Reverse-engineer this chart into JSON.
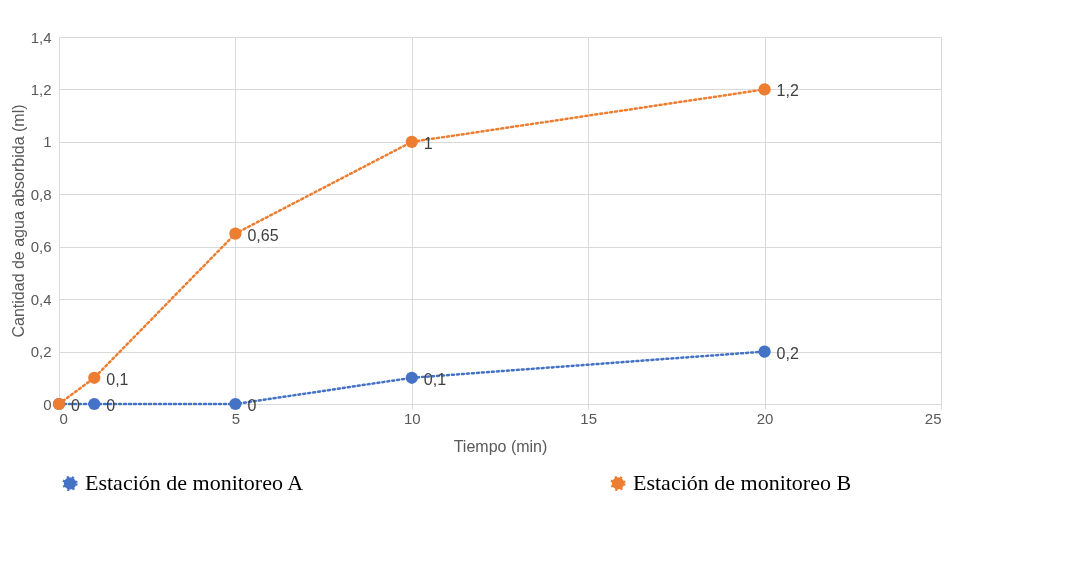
{
  "chart_data": {
    "type": "line",
    "xlabel": "Tiempo (min)",
    "ylabel": "Cantidad de agua absorbida (ml)",
    "x": [
      0,
      1,
      5,
      10,
      20
    ],
    "series": [
      {
        "name": "Estación de monitoreo A",
        "color": "#4472c4",
        "values": [
          0,
          0,
          0,
          0.1,
          0.2
        ],
        "value_labels": [
          "0",
          "0",
          "0",
          "0,1",
          "0,2"
        ]
      },
      {
        "name": "Estación de monitoreo B",
        "color": "#ed7d31",
        "values": [
          0,
          0.1,
          0.65,
          1,
          1.2
        ],
        "value_labels": [
          null,
          "0,1",
          "0,65",
          "1",
          "1,2"
        ]
      }
    ],
    "xlim": [
      0,
      25
    ],
    "xticks": [
      0,
      5,
      10,
      15,
      20,
      25
    ],
    "ylim": [
      0,
      1.4
    ],
    "yticks": [
      0,
      {
        "value": 0.2,
        "label": "0,2"
      },
      {
        "value": 0.4,
        "label": "0,4"
      },
      {
        "value": 0.6,
        "label": "0,6"
      },
      {
        "value": 0.8,
        "label": "0,8"
      },
      1,
      {
        "value": 1.2,
        "label": "1,2"
      },
      {
        "value": 1.4,
        "label": "1,4"
      }
    ],
    "grid": true,
    "legend": "bottom",
    "marker": "circle",
    "line_style": "dotted"
  }
}
